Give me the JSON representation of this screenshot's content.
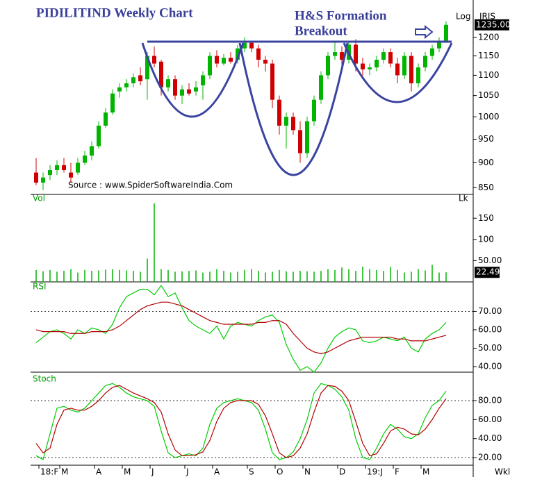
{
  "chart_data": [
    {
      "type": "candlestick",
      "title": "PIDILITIND Weekly Chart",
      "annotations": [
        "H&S Formation",
        "Breakout"
      ],
      "source": "Source : www.SpiderSoftwareIndia.Com",
      "scale_label": "Log",
      "symbol": "IRIS",
      "log": true,
      "up_color": "#00b400",
      "down_color": "#d00000",
      "open": [
        880,
        860,
        875,
        885,
        895,
        880,
        880,
        900,
        915,
        935,
        980,
        1010,
        1060,
        1070,
        1080,
        1100,
        1090,
        1150,
        1135,
        1070,
        1090,
        1050,
        1065,
        1060,
        1075,
        1100,
        1150,
        1130,
        1145,
        1140,
        1170,
        1185,
        1170,
        1140,
        1130,
        1040,
        980,
        1000,
        970,
        920,
        990,
        1040,
        1100,
        1150,
        1160,
        1140,
        1180,
        1130,
        1115,
        1120,
        1140,
        1160,
        1130,
        1100,
        1150,
        1080,
        1120,
        1150,
        1170,
        1190
      ],
      "high": [
        910,
        880,
        895,
        905,
        910,
        900,
        910,
        925,
        945,
        990,
        1020,
        1065,
        1080,
        1090,
        1105,
        1120,
        1160,
        1175,
        1140,
        1100,
        1100,
        1075,
        1080,
        1085,
        1110,
        1160,
        1165,
        1155,
        1160,
        1180,
        1200,
        1190,
        1180,
        1150,
        1140,
        1050,
        1010,
        1010,
        990,
        1000,
        1050,
        1110,
        1160,
        1190,
        1175,
        1190,
        1195,
        1145,
        1130,
        1150,
        1170,
        1170,
        1145,
        1160,
        1160,
        1130,
        1160,
        1180,
        1200,
        1245
      ],
      "low": [
        855,
        845,
        865,
        875,
        880,
        860,
        875,
        895,
        905,
        930,
        975,
        1005,
        1045,
        1060,
        1070,
        1075,
        1040,
        1120,
        1050,
        1060,
        1040,
        1030,
        1050,
        1050,
        1040,
        1090,
        1120,
        1125,
        1130,
        1130,
        1160,
        1160,
        1120,
        1110,
        1020,
        960,
        930,
        960,
        900,
        910,
        980,
        1030,
        1090,
        1140,
        1120,
        1130,
        1110,
        1100,
        1100,
        1110,
        1130,
        1120,
        1080,
        1090,
        1060,
        1070,
        1110,
        1140,
        1160,
        1185
      ],
      "close": [
        860,
        870,
        885,
        895,
        885,
        870,
        900,
        915,
        935,
        980,
        1010,
        1055,
        1070,
        1080,
        1095,
        1085,
        1150,
        1130,
        1070,
        1090,
        1050,
        1065,
        1055,
        1070,
        1100,
        1150,
        1130,
        1145,
        1135,
        1170,
        1185,
        1170,
        1140,
        1130,
        1040,
        980,
        1000,
        970,
        920,
        990,
        1040,
        1100,
        1150,
        1160,
        1140,
        1180,
        1130,
        1115,
        1120,
        1140,
        1160,
        1130,
        1100,
        1150,
        1080,
        1120,
        1150,
        1170,
        1190,
        1235
      ],
      "last_value_label": "1235.00",
      "ylim": [
        837,
        1297
      ],
      "yticks": [
        850,
        900,
        950,
        1000,
        1050,
        1100,
        1150,
        1200
      ]
    },
    {
      "type": "bar",
      "title": "Vol",
      "unit": "Lk",
      "color": "#00b400",
      "values": [
        28,
        25,
        28,
        24,
        26,
        30,
        22,
        28,
        26,
        27,
        29,
        30,
        28,
        27,
        26,
        24,
        55,
        185,
        30,
        28,
        24,
        25,
        26,
        27,
        22,
        24,
        30,
        26,
        22,
        24,
        28,
        30,
        26,
        22,
        24,
        28,
        25,
        24,
        26,
        25,
        24,
        26,
        30,
        28,
        34,
        30,
        26,
        36,
        30,
        28,
        26,
        35,
        28,
        22,
        24,
        30,
        27,
        40,
        22,
        22.49
      ],
      "ylim": [
        0,
        206
      ],
      "yticks": [
        {
          "value": 50,
          "label": "50.00"
        },
        100,
        150
      ]
    },
    {
      "type": "line",
      "title": "RSI",
      "series": [
        {
          "color": "#00cc00",
          "values": [
            53,
            56,
            59,
            60,
            58,
            55,
            60,
            58,
            61,
            60,
            58,
            63,
            72,
            78,
            80,
            82,
            82,
            79,
            84,
            78,
            80,
            72,
            65,
            62,
            60,
            58,
            62,
            55,
            62,
            64,
            63,
            62,
            65,
            67,
            68,
            64,
            52,
            44,
            38,
            40,
            37,
            42,
            50,
            56,
            59,
            61,
            60,
            54,
            53,
            54,
            56,
            55,
            54,
            56,
            50,
            48,
            55,
            58,
            60,
            64
          ]
        },
        {
          "color": "#b00000",
          "values": [
            60,
            59,
            59,
            59,
            59,
            58,
            58,
            58,
            59,
            59,
            59,
            60,
            62,
            65,
            68,
            71,
            73,
            74,
            75,
            75,
            74,
            73,
            71,
            69,
            67,
            65,
            64,
            63,
            63,
            63,
            63,
            63,
            64,
            64,
            65,
            65,
            63,
            58,
            54,
            50,
            48,
            47,
            48,
            50,
            52,
            54,
            55,
            56,
            56,
            56,
            56,
            56,
            55,
            55,
            54,
            54,
            54,
            55,
            56,
            57
          ]
        }
      ],
      "dashed_levels": [
        70
      ],
      "ylim": [
        37,
        86
      ],
      "yticks": [
        {
          "value": 40,
          "label": "40.00"
        },
        {
          "value": 50,
          "label": "50.00"
        },
        {
          "value": 60,
          "label": "60.00"
        },
        {
          "value": 70,
          "label": "70.00"
        }
      ]
    },
    {
      "type": "line",
      "title": "Stoch",
      "series": [
        {
          "color": "#00cc00",
          "values": [
            22,
            18,
            45,
            72,
            74,
            70,
            68,
            72,
            80,
            88,
            96,
            98,
            94,
            88,
            84,
            82,
            80,
            74,
            48,
            25,
            20,
            22,
            24,
            22,
            30,
            55,
            72,
            78,
            80,
            82,
            80,
            78,
            70,
            50,
            25,
            18,
            20,
            26,
            40,
            60,
            88,
            98,
            96,
            92,
            84,
            70,
            40,
            20,
            18,
            30,
            45,
            55,
            50,
            42,
            40,
            45,
            62,
            75,
            80,
            90
          ]
        },
        {
          "color": "#b00000",
          "values": [
            35,
            25,
            30,
            55,
            70,
            72,
            70,
            70,
            74,
            80,
            88,
            94,
            96,
            92,
            88,
            85,
            82,
            78,
            68,
            45,
            28,
            22,
            22,
            23,
            26,
            38,
            58,
            72,
            78,
            80,
            80,
            80,
            76,
            64,
            45,
            25,
            20,
            22,
            30,
            45,
            68,
            88,
            96,
            95,
            90,
            80,
            58,
            35,
            22,
            24,
            35,
            48,
            52,
            50,
            45,
            44,
            50,
            60,
            72,
            82
          ]
        }
      ],
      "dashed_levels": [
        20,
        80
      ],
      "ylim": [
        12,
        110
      ],
      "yticks": [
        {
          "value": 20,
          "label": "20.00"
        },
        {
          "value": 40,
          "label": "40.00"
        },
        {
          "value": 60,
          "label": "60.00"
        },
        {
          "value": 80,
          "label": "80.00"
        }
      ],
      "categories": [
        null,
        "18:F",
        null,
        null,
        "M",
        null,
        null,
        null,
        null,
        "A",
        null,
        null,
        null,
        "M",
        null,
        null,
        null,
        "J",
        null,
        null,
        null,
        null,
        "J",
        null,
        null,
        null,
        "A",
        null,
        null,
        null,
        null,
        "S",
        null,
        null,
        null,
        "O",
        null,
        null,
        null,
        "N",
        null,
        null,
        null,
        null,
        "D",
        null,
        null,
        null,
        "19:J",
        null,
        null,
        null,
        "F",
        null,
        null,
        null,
        "M",
        null,
        null,
        null
      ],
      "interval": "Wkl"
    }
  ]
}
